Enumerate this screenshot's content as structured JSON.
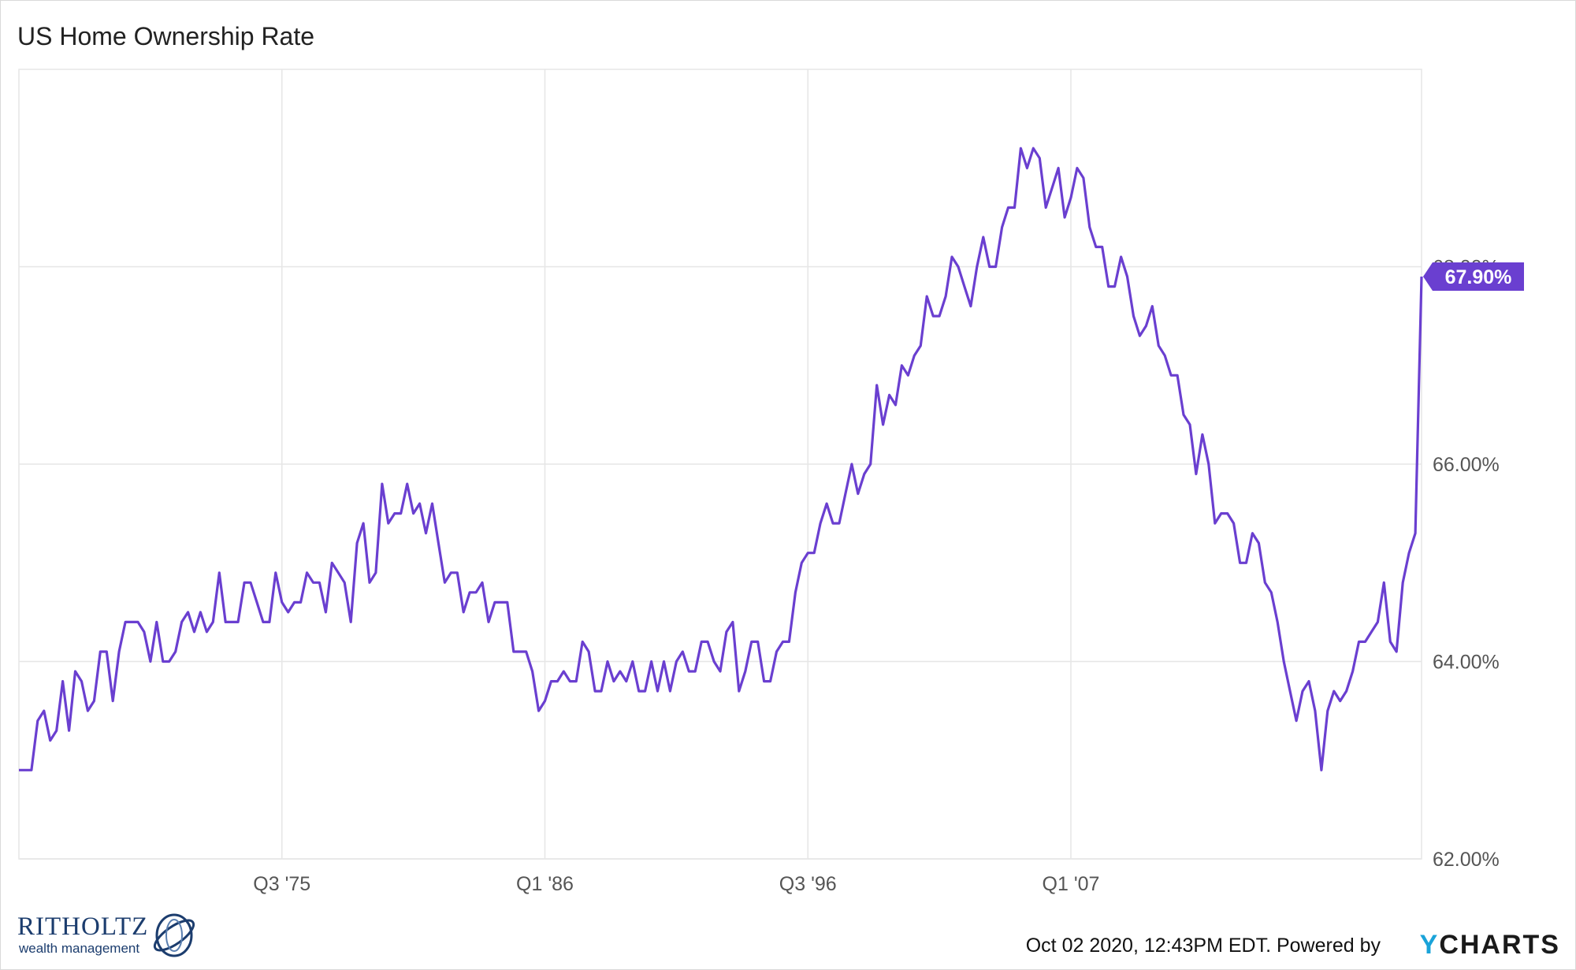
{
  "title": "US Home Ownership Rate",
  "footer": {
    "timestamp": "Oct 02 2020, 12:43PM EDT.",
    "powered_by": "Powered by",
    "ycharts_y": "Y",
    "ycharts_rest": "CHARTS"
  },
  "brand": {
    "name": "RITHOLTZ",
    "subtitle": "wealth management"
  },
  "colors": {
    "line": "#6a3fd0",
    "grid": "#e6e6e6",
    "label_bg": "#6a3fd0"
  },
  "chart_data": {
    "type": "line",
    "title": "US Home Ownership Rate",
    "xlabel": "",
    "ylabel": "",
    "x_tick_labels": [
      "Q3 '75",
      "Q1 '86",
      "Q3 '96",
      "Q1 '07"
    ],
    "y_tick_labels": [
      "62.00%",
      "64.00%",
      "66.00%",
      "68.00%"
    ],
    "y_ticks": [
      62,
      64,
      66,
      68
    ],
    "ylim": [
      62,
      70
    ],
    "last_value_label": "67.90%",
    "grid": true,
    "series": [
      {
        "name": "",
        "start": "Q1 1965",
        "frequency": "quarterly",
        "values": [
          62.9,
          62.9,
          62.9,
          63.4,
          63.5,
          63.2,
          63.3,
          63.8,
          63.3,
          63.9,
          63.8,
          63.5,
          63.6,
          64.1,
          64.1,
          63.6,
          64.1,
          64.4,
          64.4,
          64.4,
          64.3,
          64.0,
          64.4,
          64.0,
          64.0,
          64.1,
          64.4,
          64.5,
          64.3,
          64.5,
          64.3,
          64.4,
          64.9,
          64.4,
          64.4,
          64.4,
          64.8,
          64.8,
          64.6,
          64.4,
          64.4,
          64.9,
          64.6,
          64.5,
          64.6,
          64.6,
          64.9,
          64.8,
          64.8,
          64.5,
          65.0,
          64.9,
          64.8,
          64.4,
          65.2,
          65.4,
          64.8,
          64.9,
          65.8,
          65.4,
          65.5,
          65.5,
          65.8,
          65.5,
          65.6,
          65.3,
          65.6,
          65.2,
          64.8,
          64.9,
          64.9,
          64.5,
          64.7,
          64.7,
          64.8,
          64.4,
          64.6,
          64.6,
          64.6,
          64.1,
          64.1,
          64.1,
          63.9,
          63.5,
          63.6,
          63.8,
          63.8,
          63.9,
          63.8,
          63.8,
          64.2,
          64.1,
          63.7,
          63.7,
          64.0,
          63.8,
          63.9,
          63.8,
          64.0,
          63.7,
          63.7,
          64.0,
          63.7,
          64.0,
          63.7,
          64.0,
          64.1,
          63.9,
          63.9,
          64.2,
          64.2,
          64.0,
          63.9,
          64.3,
          64.4,
          63.7,
          63.9,
          64.2,
          64.2,
          63.8,
          63.8,
          64.1,
          64.2,
          64.2,
          64.7,
          65.0,
          65.1,
          65.1,
          65.4,
          65.6,
          65.4,
          65.4,
          65.7,
          66.0,
          65.7,
          65.9,
          66.0,
          66.8,
          66.4,
          66.7,
          66.6,
          67.0,
          66.9,
          67.1,
          67.2,
          67.7,
          67.5,
          67.5,
          67.7,
          68.1,
          68.0,
          67.8,
          67.6,
          68.0,
          68.3,
          68.0,
          68.0,
          68.4,
          68.6,
          68.6,
          69.2,
          69.0,
          69.2,
          69.1,
          68.6,
          68.8,
          69.0,
          68.5,
          68.7,
          69.0,
          68.9,
          68.4,
          68.2,
          68.2,
          67.8,
          67.8,
          68.1,
          67.9,
          67.5,
          67.3,
          67.4,
          67.6,
          67.2,
          67.1,
          66.9,
          66.9,
          66.5,
          66.4,
          65.9,
          66.3,
          66.0,
          65.4,
          65.5,
          65.5,
          65.4,
          65.0,
          65.0,
          65.3,
          65.2,
          64.8,
          64.7,
          64.4,
          64.0,
          63.7,
          63.4,
          63.7,
          63.8,
          63.5,
          62.9,
          63.5,
          63.7,
          63.6,
          63.7,
          63.9,
          64.2,
          64.2,
          64.3,
          64.4,
          64.8,
          64.2,
          64.1,
          64.8,
          65.1,
          65.3,
          67.9
        ]
      }
    ]
  }
}
